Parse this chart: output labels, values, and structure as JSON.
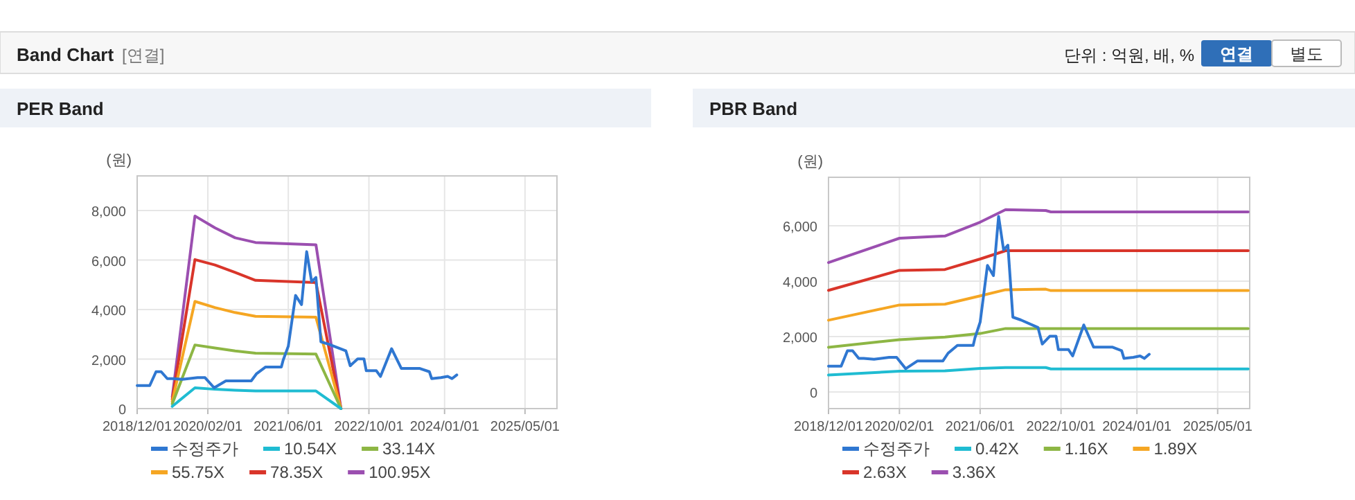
{
  "chart_data": [
    {
      "type": "other",
      "title": "Band Chart",
      "annotations": [
        "[연결]",
        "단위 : 억원, 배, %",
        "연결",
        "별도"
      ]
    },
    {
      "type": "line",
      "title": "PER Band",
      "ylabel": "(원)",
      "xlim": [
        "2018-12-01",
        "2025-11-10"
      ],
      "ylim": [
        0,
        9400
      ],
      "xticks": [
        {
          "value": "2018-12-01",
          "label": "2018/12/01"
        },
        {
          "value": "2020-02-01",
          "label": "2020/02/01"
        },
        {
          "value": "2021-06-01",
          "label": "2021/06/01"
        },
        {
          "value": "2022-10-01",
          "label": "2022/10/01"
        },
        {
          "value": "2024-01-01",
          "label": "2024/01/01"
        },
        {
          "value": "2025-05-01",
          "label": "2025/05/01"
        }
      ],
      "yticks": [
        0,
        {
          "value": 2000,
          "label": "2,000"
        },
        {
          "value": 4000,
          "label": "4,000"
        },
        {
          "value": 6000,
          "label": "6,000"
        },
        {
          "value": 8000,
          "label": "8,000"
        }
      ],
      "grid": true,
      "legend": "bottom",
      "series": [
        {
          "name": "수정주가",
          "color": "#2f77d1",
          "x": [
            "2018-12-01",
            "2019-02-15",
            "2019-03-25",
            "2019-04-25",
            "2019-06-01",
            "2019-07-01",
            "2019-09-01",
            "2019-12-01",
            "2020-01-15",
            "2020-03-10",
            "2020-05-20",
            "2020-10-20",
            "2020-11-20",
            "2021-01-15",
            "2021-04-20",
            "2021-05-01",
            "2021-06-01",
            "2021-07-15",
            "2021-08-20",
            "2021-09-20",
            "2021-10-20",
            "2021-11-15",
            "2021-12-15",
            "2022-02-01",
            "2022-05-15",
            "2022-06-10",
            "2022-07-25",
            "2022-09-01",
            "2022-09-15",
            "2022-11-15",
            "2022-12-10",
            "2023-02-15",
            "2023-04-15",
            "2023-08-05",
            "2023-10-01",
            "2023-10-15",
            "2023-12-10",
            "2024-01-20",
            "2024-02-15",
            "2024-03-15"
          ],
          "values": [
            930,
            930,
            1490,
            1490,
            1210,
            1210,
            1180,
            1250,
            1250,
            840,
            1120,
            1120,
            1400,
            1680,
            1680,
            1960,
            2520,
            4570,
            4200,
            6340,
            5130,
            5300,
            2700,
            2600,
            2330,
            1730,
            2010,
            2010,
            1530,
            1530,
            1300,
            2420,
            1620,
            1620,
            1490,
            1210,
            1250,
            1300,
            1210,
            1360
          ]
        },
        {
          "name": "10.54X",
          "color": "#1fbcd2",
          "x": [
            "2019-07-01",
            "2019-11-15",
            "2020-03-15",
            "2020-07-15",
            "2020-11-15",
            "2021-11-15",
            "2022-04-15"
          ],
          "values": [
            90,
            840,
            780,
            740,
            710,
            710,
            0
          ]
        },
        {
          "name": "33.14X",
          "color": "#8db644",
          "x": [
            "2019-07-01",
            "2019-11-15",
            "2020-03-15",
            "2020-07-15",
            "2020-11-15",
            "2021-11-15",
            "2022-04-15"
          ],
          "values": [
            190,
            2570,
            2450,
            2330,
            2240,
            2200,
            0
          ]
        },
        {
          "name": "55.75X",
          "color": "#f5a623",
          "x": [
            "2019-07-01",
            "2019-11-15",
            "2020-03-15",
            "2020-07-15",
            "2020-11-15",
            "2021-11-15",
            "2022-04-15"
          ],
          "values": [
            280,
            4330,
            4080,
            3880,
            3730,
            3690,
            0
          ]
        },
        {
          "name": "78.35X",
          "color": "#d9352a",
          "x": [
            "2019-07-01",
            "2019-11-15",
            "2020-03-15",
            "2020-07-15",
            "2020-11-15",
            "2021-11-15",
            "2022-04-15"
          ],
          "values": [
            370,
            6020,
            5800,
            5500,
            5180,
            5090,
            0
          ]
        },
        {
          "name": "100.95X",
          "color": "#9b4fb0",
          "x": [
            "2019-07-01",
            "2019-11-15",
            "2020-03-15",
            "2020-07-15",
            "2020-11-15",
            "2021-11-15",
            "2022-04-15"
          ],
          "values": [
            470,
            7780,
            7300,
            6900,
            6710,
            6620,
            0
          ]
        }
      ]
    },
    {
      "type": "line",
      "title": "PBR Band",
      "ylabel": "(원)",
      "xlim": [
        "2018-12-01",
        "2025-11-10"
      ],
      "ylim": [
        -600,
        7750
      ],
      "xticks": [
        {
          "value": "2018-12-01",
          "label": "2018/12/01"
        },
        {
          "value": "2020-02-01",
          "label": "2020/02/01"
        },
        {
          "value": "2021-06-01",
          "label": "2021/06/01"
        },
        {
          "value": "2022-10-01",
          "label": "2022/10/01"
        },
        {
          "value": "2024-01-01",
          "label": "2024/01/01"
        },
        {
          "value": "2025-05-01",
          "label": "2025/05/01"
        }
      ],
      "yticks": [
        0,
        {
          "value": 2000,
          "label": "2,000"
        },
        {
          "value": 4000,
          "label": "4,000"
        },
        {
          "value": 6000,
          "label": "6,000"
        }
      ],
      "grid": true,
      "legend": "bottom",
      "series": [
        {
          "name": "수정주가",
          "color": "#2f77d1",
          "x": [
            "2018-12-01",
            "2019-02-15",
            "2019-03-25",
            "2019-04-25",
            "2019-06-01",
            "2019-07-01",
            "2019-09-01",
            "2019-12-01",
            "2020-01-15",
            "2020-03-10",
            "2020-05-20",
            "2020-10-20",
            "2020-11-20",
            "2021-01-15",
            "2021-04-20",
            "2021-05-01",
            "2021-06-01",
            "2021-07-15",
            "2021-08-20",
            "2021-09-20",
            "2021-10-20",
            "2021-11-15",
            "2021-12-15",
            "2022-02-01",
            "2022-05-15",
            "2022-06-10",
            "2022-07-25",
            "2022-09-01",
            "2022-09-15",
            "2022-11-15",
            "2022-12-10",
            "2023-02-15",
            "2023-04-15",
            "2023-08-05",
            "2023-10-01",
            "2023-10-15",
            "2023-12-10",
            "2024-01-20",
            "2024-02-15",
            "2024-03-15"
          ],
          "values": [
            930,
            930,
            1490,
            1490,
            1210,
            1210,
            1180,
            1250,
            1250,
            840,
            1120,
            1120,
            1400,
            1680,
            1680,
            1960,
            2520,
            4570,
            4200,
            6340,
            5130,
            5300,
            2700,
            2600,
            2330,
            1730,
            2010,
            2010,
            1530,
            1530,
            1300,
            2420,
            1620,
            1620,
            1490,
            1210,
            1250,
            1300,
            1210,
            1360
          ]
        },
        {
          "name": "0.42X",
          "color": "#1fbcd2",
          "x": [
            "2018-12-01",
            "2020-02-01",
            "2020-11-01",
            "2021-06-01",
            "2021-11-01",
            "2022-07-01",
            "2022-08-01",
            "2025-11-01"
          ],
          "values": [
            610,
            750,
            760,
            850,
            880,
            880,
            830,
            830
          ]
        },
        {
          "name": "1.16X",
          "color": "#8db644",
          "x": [
            "2018-12-01",
            "2020-02-01",
            "2020-11-01",
            "2021-06-01",
            "2021-11-01",
            "2022-07-01",
            "2022-08-01",
            "2025-11-01"
          ],
          "values": [
            1610,
            1890,
            1980,
            2110,
            2290,
            2290,
            2290,
            2290
          ]
        },
        {
          "name": "1.89X",
          "color": "#f5a623",
          "x": [
            "2018-12-01",
            "2020-02-01",
            "2020-11-01",
            "2021-06-01",
            "2021-11-01",
            "2022-07-01",
            "2022-08-01",
            "2025-11-01"
          ],
          "values": [
            2590,
            3140,
            3170,
            3470,
            3690,
            3710,
            3660,
            3660
          ]
        },
        {
          "name": "2.63X",
          "color": "#d9352a",
          "x": [
            "2018-12-01",
            "2020-02-01",
            "2020-11-01",
            "2021-06-01",
            "2021-11-01",
            "2022-07-01",
            "2022-08-01",
            "2025-11-01"
          ],
          "values": [
            3670,
            4390,
            4420,
            4800,
            5100,
            5100,
            5100,
            5100
          ]
        },
        {
          "name": "3.36X",
          "color": "#9b4fb0",
          "x": [
            "2018-12-01",
            "2020-02-01",
            "2020-11-01",
            "2021-06-01",
            "2021-11-01",
            "2022-07-01",
            "2022-08-01",
            "2025-11-01"
          ],
          "values": [
            4670,
            5550,
            5630,
            6130,
            6580,
            6550,
            6500,
            6500
          ]
        }
      ]
    }
  ]
}
